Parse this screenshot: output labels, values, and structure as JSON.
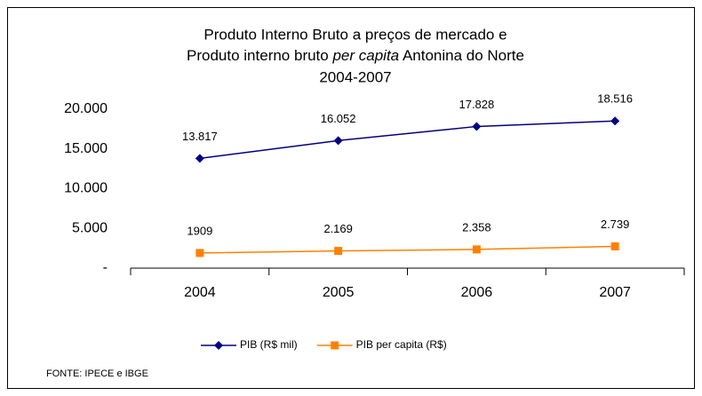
{
  "chart_data": {
    "type": "line",
    "title": {
      "line1": "Produto Interno Bruto a preços de mercado  e",
      "line2_start": "Produto interno bruto",
      "line2_italic": "per capita",
      "line2_end": "Antonina do Norte",
      "line3": "2004-2007"
    },
    "categories": [
      "2004",
      "2005",
      "2006",
      "2007"
    ],
    "series": [
      {
        "name": "PIB (R$ mil)",
        "color": "#000080",
        "marker": "diamond",
        "values": [
          13817,
          16052,
          17828,
          18516
        ],
        "value_labels": [
          "13.817",
          "16.052",
          "17.828",
          "18.516"
        ]
      },
      {
        "name": "PIB per capita (R$)",
        "color": "#ff8000",
        "marker": "square",
        "values": [
          1909,
          2169,
          2358,
          2739
        ],
        "value_labels": [
          "1909",
          "2.169",
          "2.358",
          "2.739"
        ]
      }
    ],
    "ylim": [
      0,
      20000
    ],
    "yticks": [
      {
        "value": 0,
        "label": "-"
      },
      {
        "value": 5000,
        "label": "5.000"
      },
      {
        "value": 10000,
        "label": "10.000"
      },
      {
        "value": 15000,
        "label": "15.000"
      },
      {
        "value": 20000,
        "label": "20.000"
      }
    ],
    "grid": false,
    "legend": "bottom",
    "source": "FONTE: IPECE e IBGE"
  }
}
